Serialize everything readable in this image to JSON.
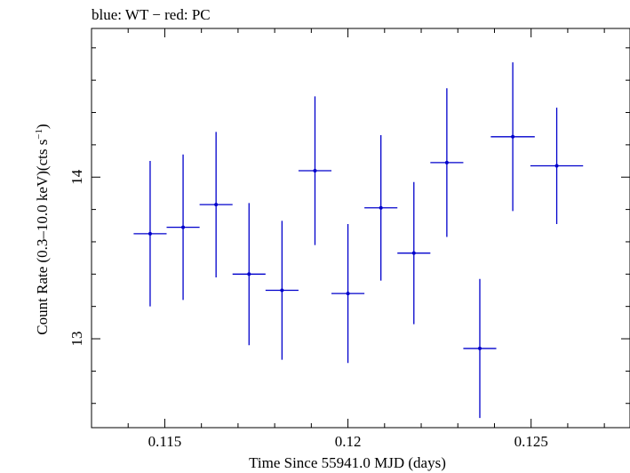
{
  "chart_data": {
    "type": "scatter",
    "title": "blue: WT − red: PC",
    "xlabel": "Time Since 55941.0 MJD (days)",
    "ylabel_main": "Count Rate (0.3–10.0 keV)(cts s",
    "ylabel_sup": "−1",
    "ylabel_end": ")",
    "xlim": [
      0.113,
      0.1277
    ],
    "ylim": [
      12.45,
      14.92
    ],
    "x_ticks_major": [
      0.115,
      0.12,
      0.125
    ],
    "x_tick_labels": [
      "0.115",
      "0.12",
      "0.125"
    ],
    "y_ticks_major": [
      13,
      14
    ],
    "y_tick_labels": [
      "13",
      "14"
    ],
    "grid": false,
    "series": [
      {
        "color": "#0000cc",
        "points": [
          {
            "x": 0.1146,
            "xerr": 0.00045,
            "y": 13.65,
            "yerr": 0.45
          },
          {
            "x": 0.1155,
            "xerr": 0.00045,
            "y": 13.69,
            "yerr": 0.45
          },
          {
            "x": 0.1164,
            "xerr": 0.00045,
            "y": 13.83,
            "yerr": 0.45
          },
          {
            "x": 0.1173,
            "xerr": 0.00045,
            "y": 13.4,
            "yerr": 0.44
          },
          {
            "x": 0.1182,
            "xerr": 0.00045,
            "y": 13.3,
            "yerr": 0.43
          },
          {
            "x": 0.1191,
            "xerr": 0.00045,
            "y": 14.04,
            "yerr": 0.46
          },
          {
            "x": 0.12,
            "xerr": 0.00045,
            "y": 13.28,
            "yerr": 0.43
          },
          {
            "x": 0.1209,
            "xerr": 0.00045,
            "y": 13.81,
            "yerr": 0.45
          },
          {
            "x": 0.1218,
            "xerr": 0.00045,
            "y": 13.53,
            "yerr": 0.44
          },
          {
            "x": 0.1227,
            "xerr": 0.00045,
            "y": 14.09,
            "yerr": 0.46
          },
          {
            "x": 0.1236,
            "xerr": 0.00045,
            "y": 12.94,
            "yerr": 0.43
          },
          {
            "x": 0.1245,
            "xerr": 0.0006,
            "y": 14.25,
            "yerr": 0.46
          },
          {
            "x": 0.1257,
            "xerr": 0.00072,
            "y": 14.07,
            "yerr": 0.36
          }
        ]
      }
    ]
  }
}
